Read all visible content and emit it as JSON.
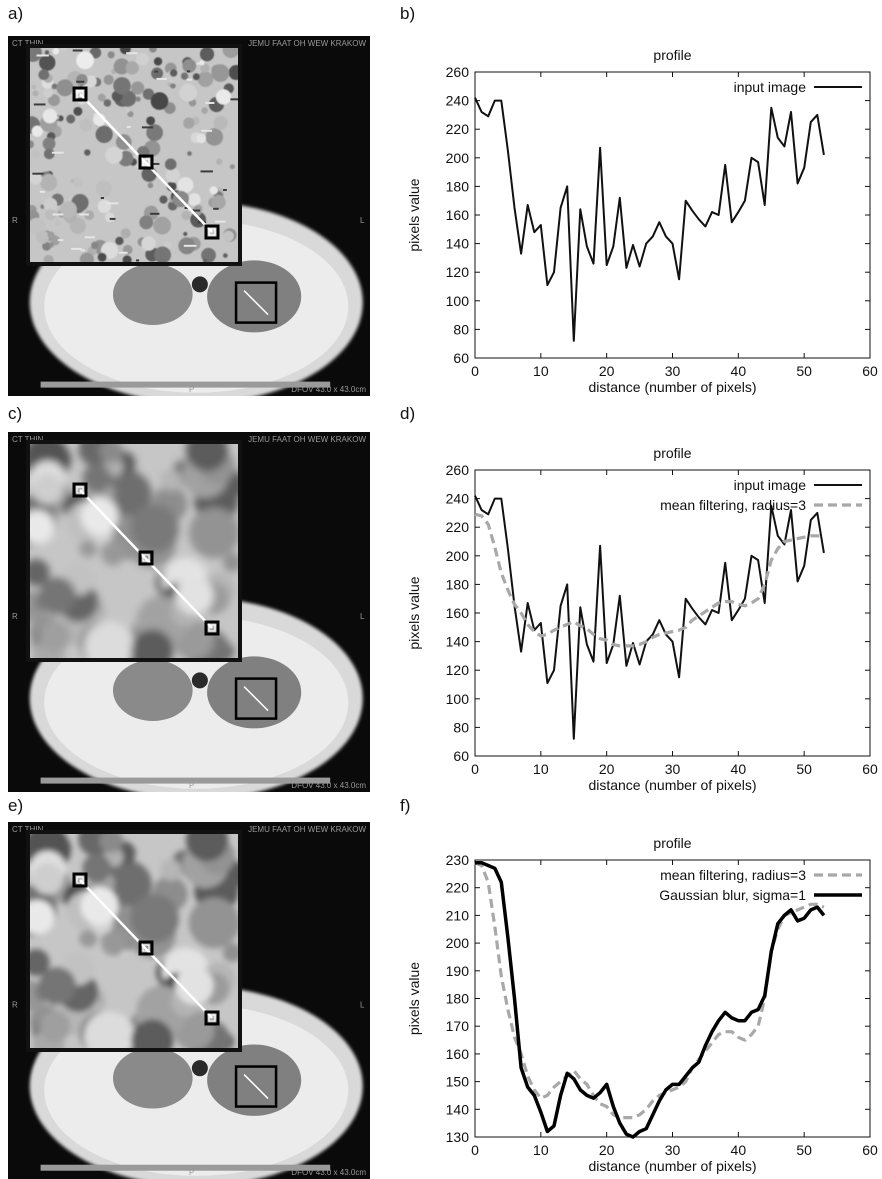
{
  "panel_labels": {
    "a": "a)",
    "b": "b)",
    "c": "c)",
    "d": "d)",
    "e": "e)",
    "f": "f)"
  },
  "ct_texts": {
    "top_left": "CT THIN",
    "top_right": "JEMU FAAT OH WEW KRAKOW",
    "r": "R",
    "l": "L",
    "p": "P",
    "bottom_right": "DFOV 43.0 x 43.0cm"
  },
  "colors": {
    "input": "#111111",
    "mean": "#a8a8a8",
    "gauss": "#000000"
  },
  "chart_data": [
    {
      "type": "line",
      "title": "profile",
      "xlabel": "distance (number of pixels)",
      "ylabel": "pixels value",
      "xlim": [
        0,
        60
      ],
      "ylim": [
        60,
        260
      ],
      "xticks": [
        0,
        10,
        20,
        30,
        40,
        50,
        60
      ],
      "yticks": [
        60,
        80,
        100,
        120,
        140,
        160,
        180,
        200,
        220,
        240,
        260
      ],
      "legend": "top-right",
      "grid": false,
      "series": [
        {
          "name": "input image",
          "style": "input",
          "x": [
            0,
            1,
            2,
            3,
            4,
            5,
            6,
            7,
            8,
            9,
            10,
            11,
            12,
            13,
            14,
            15,
            16,
            17,
            18,
            19,
            20,
            21,
            22,
            23,
            24,
            25,
            26,
            27,
            28,
            29,
            30,
            31,
            32,
            33,
            34,
            35,
            36,
            37,
            38,
            39,
            40,
            41,
            42,
            43,
            44,
            45,
            46,
            47,
            48,
            49,
            50,
            51,
            52,
            53
          ],
          "y": [
            242,
            232,
            229,
            240,
            240,
            205,
            165,
            133,
            167,
            148,
            153,
            111,
            120,
            165,
            180,
            72,
            164,
            138,
            126,
            207,
            125,
            138,
            172,
            123,
            139,
            124,
            140,
            145,
            155,
            145,
            140,
            115,
            170,
            163,
            157,
            152,
            162,
            160,
            195,
            155,
            162,
            170,
            200,
            197,
            167,
            235,
            214,
            208,
            232,
            182,
            193,
            225,
            230,
            202
          ]
        }
      ]
    },
    {
      "type": "line",
      "title": "profile",
      "xlabel": "distance (number of pixels)",
      "ylabel": "pixels value",
      "xlim": [
        0,
        60
      ],
      "ylim": [
        60,
        260
      ],
      "xticks": [
        0,
        10,
        20,
        30,
        40,
        50,
        60
      ],
      "yticks": [
        60,
        80,
        100,
        120,
        140,
        160,
        180,
        200,
        220,
        240,
        260
      ],
      "legend": "top-right",
      "grid": false,
      "series": [
        {
          "name": "input image",
          "style": "input",
          "x": [
            0,
            1,
            2,
            3,
            4,
            5,
            6,
            7,
            8,
            9,
            10,
            11,
            12,
            13,
            14,
            15,
            16,
            17,
            18,
            19,
            20,
            21,
            22,
            23,
            24,
            25,
            26,
            27,
            28,
            29,
            30,
            31,
            32,
            33,
            34,
            35,
            36,
            37,
            38,
            39,
            40,
            41,
            42,
            43,
            44,
            45,
            46,
            47,
            48,
            49,
            50,
            51,
            52,
            53
          ],
          "y": [
            242,
            232,
            229,
            240,
            240,
            205,
            165,
            133,
            167,
            148,
            153,
            111,
            120,
            165,
            180,
            72,
            164,
            138,
            126,
            207,
            125,
            138,
            172,
            123,
            139,
            124,
            140,
            145,
            155,
            145,
            140,
            115,
            170,
            163,
            157,
            152,
            162,
            160,
            195,
            155,
            162,
            170,
            200,
            197,
            167,
            235,
            214,
            208,
            232,
            182,
            193,
            225,
            230,
            202
          ]
        },
        {
          "name": "mean filtering, radius=3",
          "style": "mean",
          "x": [
            0,
            1,
            2,
            3,
            4,
            5,
            6,
            7,
            8,
            9,
            10,
            11,
            12,
            13,
            14,
            15,
            16,
            17,
            18,
            19,
            20,
            21,
            22,
            23,
            24,
            25,
            26,
            27,
            28,
            29,
            30,
            31,
            32,
            33,
            34,
            35,
            36,
            37,
            38,
            39,
            40,
            41,
            42,
            43,
            44,
            45,
            46,
            47,
            48,
            49,
            50,
            51,
            52,
            53
          ],
          "y": [
            229,
            228,
            222,
            206,
            188,
            176,
            166,
            160,
            152,
            147,
            144,
            145,
            148,
            150,
            152,
            154,
            151,
            149,
            145,
            142,
            141,
            138,
            137,
            137,
            137,
            138,
            140,
            143,
            145,
            146,
            147,
            148,
            150,
            155,
            158,
            161,
            164,
            167,
            168,
            168,
            166,
            165,
            167,
            170,
            180,
            197,
            205,
            210,
            211,
            212,
            213,
            214,
            214,
            213
          ]
        }
      ]
    },
    {
      "type": "line",
      "title": "profile",
      "xlabel": "distance (number of pixels)",
      "ylabel": "pixels value",
      "xlim": [
        0,
        60
      ],
      "ylim": [
        130,
        230
      ],
      "xticks": [
        0,
        10,
        20,
        30,
        40,
        50,
        60
      ],
      "yticks": [
        130,
        140,
        150,
        160,
        170,
        180,
        190,
        200,
        210,
        220,
        230
      ],
      "legend": "top-right",
      "grid": false,
      "series": [
        {
          "name": "mean filtering, radius=3",
          "style": "mean",
          "x": [
            0,
            1,
            2,
            3,
            4,
            5,
            6,
            7,
            8,
            9,
            10,
            11,
            12,
            13,
            14,
            15,
            16,
            17,
            18,
            19,
            20,
            21,
            22,
            23,
            24,
            25,
            26,
            27,
            28,
            29,
            30,
            31,
            32,
            33,
            34,
            35,
            36,
            37,
            38,
            39,
            40,
            41,
            42,
            43,
            44,
            45,
            46,
            47,
            48,
            49,
            50,
            51,
            52,
            53
          ],
          "y": [
            229,
            228,
            222,
            206,
            188,
            176,
            166,
            160,
            152,
            147,
            144,
            145,
            148,
            150,
            152,
            154,
            151,
            149,
            145,
            142,
            141,
            138,
            137,
            137,
            137,
            138,
            140,
            143,
            145,
            146,
            147,
            148,
            150,
            155,
            158,
            161,
            164,
            167,
            168,
            168,
            166,
            165,
            167,
            170,
            180,
            197,
            205,
            210,
            211,
            212,
            213,
            214,
            214,
            213
          ]
        },
        {
          "name": "Gaussian blur, sigma=1",
          "style": "gauss",
          "x": [
            0,
            1,
            2,
            3,
            4,
            5,
            6,
            7,
            8,
            9,
            10,
            11,
            12,
            13,
            14,
            15,
            16,
            17,
            18,
            19,
            20,
            21,
            22,
            23,
            24,
            25,
            26,
            27,
            28,
            29,
            30,
            31,
            32,
            33,
            34,
            35,
            36,
            37,
            38,
            39,
            40,
            41,
            42,
            43,
            44,
            45,
            46,
            47,
            48,
            49,
            50,
            51,
            52,
            53
          ],
          "y": [
            229,
            229,
            228,
            227,
            222,
            202,
            180,
            155,
            148,
            145,
            139,
            132,
            134,
            145,
            153,
            151,
            147,
            145,
            144,
            146,
            149,
            141,
            135,
            131,
            130,
            132,
            133,
            138,
            143,
            147,
            149,
            149,
            152,
            155,
            157,
            163,
            168,
            172,
            175,
            173,
            172,
            172,
            175,
            176,
            181,
            197,
            207,
            210,
            212,
            208,
            209,
            212,
            213,
            210
          ]
        }
      ]
    }
  ]
}
